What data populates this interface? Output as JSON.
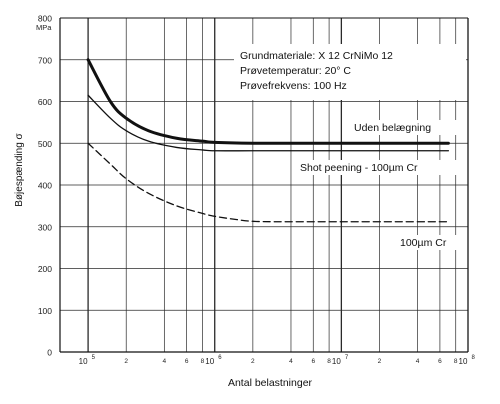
{
  "chart_data": {
    "type": "line",
    "xlabel": "Antal belastninger",
    "ylabel": "Bøjespænding σ",
    "y_unit": "MPa",
    "x_scale": "log",
    "xlim": [
      60000,
      100000000
    ],
    "ylim": [
      0,
      800
    ],
    "grid": true,
    "y_ticks": [
      "0",
      "100",
      "200",
      "300",
      "400",
      "500",
      "600",
      "700",
      "800"
    ],
    "x_ticks": [
      {
        "value": 100000,
        "label": "10",
        "exp": "5"
      },
      {
        "value": 200000,
        "label": "2"
      },
      {
        "value": 400000,
        "label": "4"
      },
      {
        "value": 600000,
        "label": "6"
      },
      {
        "value": 800000,
        "label": "8"
      },
      {
        "value": 1000000,
        "label": "10",
        "exp": "6"
      },
      {
        "value": 2000000,
        "label": "2"
      },
      {
        "value": 4000000,
        "label": "4"
      },
      {
        "value": 6000000,
        "label": "6"
      },
      {
        "value": 8000000,
        "label": "8"
      },
      {
        "value": 10000000,
        "label": "10",
        "exp": "7"
      },
      {
        "value": 20000000,
        "label": "2"
      },
      {
        "value": 40000000,
        "label": "4"
      },
      {
        "value": 60000000,
        "label": "6"
      },
      {
        "value": 80000000,
        "label": "8"
      },
      {
        "value": 100000000,
        "label": "10",
        "exp": "8"
      }
    ],
    "info_box": [
      "Grundmateriale: X 12 CrNiMo 12",
      "Prøvetemperatur: 20° C",
      "Prøvefrekvens: 100 Hz"
    ],
    "series": [
      {
        "name": "Uden belægning",
        "style": "thick",
        "x": [
          100000,
          150000,
          200000,
          300000,
          500000,
          800000,
          1000000,
          2000000,
          5000000,
          10000000,
          30000000,
          70000000
        ],
        "y": [
          700,
          600,
          560,
          530,
          512,
          505,
          502,
          500,
          500,
          500,
          500,
          500
        ]
      },
      {
        "name": "Shot peening - 100µm Cr",
        "style": "thin",
        "x": [
          100000,
          150000,
          200000,
          300000,
          500000,
          800000,
          1000000,
          2000000,
          5000000,
          10000000,
          30000000,
          70000000
        ],
        "y": [
          615,
          560,
          530,
          505,
          490,
          484,
          482,
          482,
          482,
          482,
          482,
          482
        ]
      },
      {
        "name": "100µm Cr",
        "style": "dashed",
        "x": [
          100000,
          150000,
          200000,
          300000,
          500000,
          800000,
          1000000,
          1500000,
          2000000,
          3000000,
          5000000,
          10000000,
          30000000,
          70000000
        ],
        "y": [
          500,
          450,
          415,
          380,
          350,
          332,
          325,
          317,
          313,
          312,
          312,
          312,
          312,
          312
        ]
      }
    ]
  }
}
